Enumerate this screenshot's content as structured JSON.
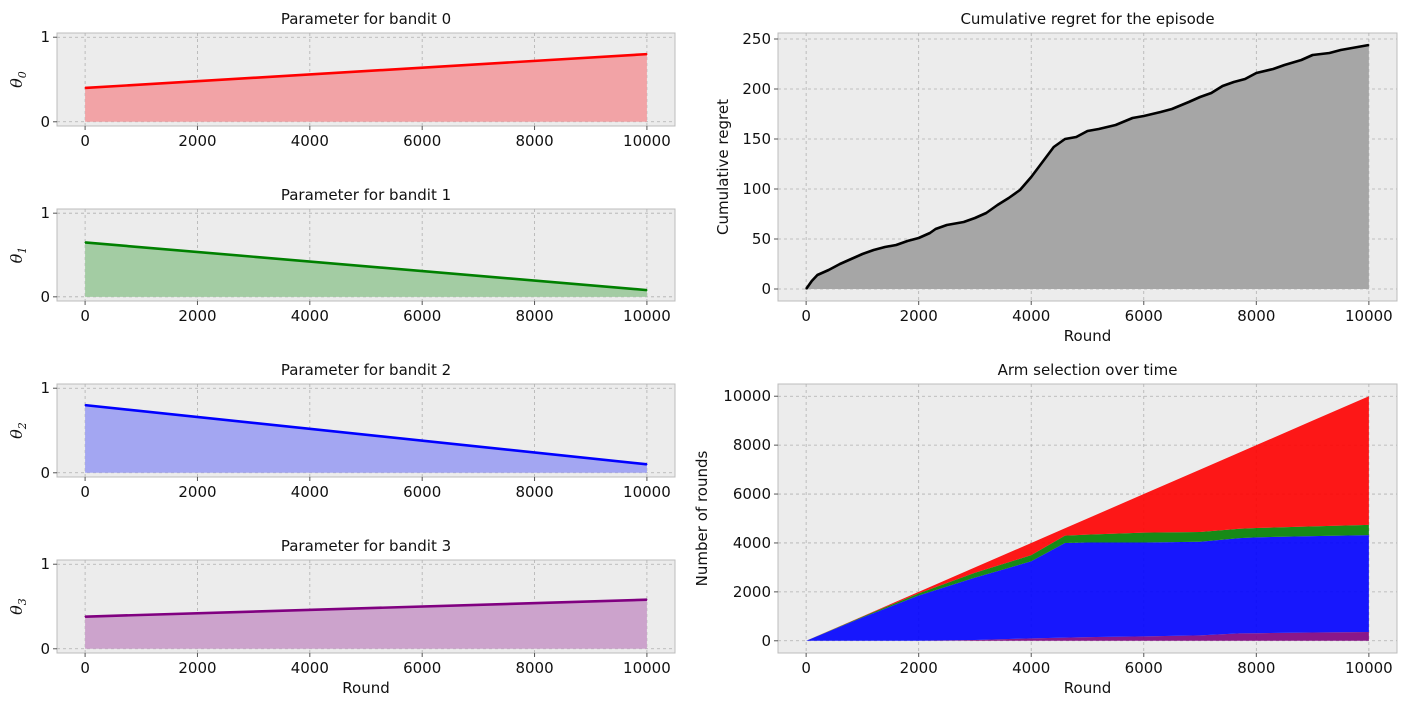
{
  "chart_data": [
    {
      "type": "area",
      "title": "Parameter for bandit 0",
      "ylabel": "θ",
      "ylabel_sub": "0",
      "xlabel": "",
      "color": "#ff0000",
      "fill": "#f2a3a6",
      "x": [
        0,
        10000
      ],
      "values": [
        0.4,
        0.8
      ],
      "xlim": [
        -500,
        10500
      ],
      "ylim": [
        -0.05,
        1.05
      ],
      "xticks": [
        0,
        2000,
        4000,
        6000,
        8000,
        10000
      ],
      "yticks": [
        0,
        1
      ],
      "grid": true
    },
    {
      "type": "area",
      "title": "Parameter for bandit 1",
      "ylabel": "θ",
      "ylabel_sub": "1",
      "xlabel": "",
      "color": "#008000",
      "fill": "#a3cca3",
      "x": [
        0,
        10000
      ],
      "values": [
        0.65,
        0.08
      ],
      "xlim": [
        -500,
        10500
      ],
      "ylim": [
        -0.05,
        1.05
      ],
      "xticks": [
        0,
        2000,
        4000,
        6000,
        8000,
        10000
      ],
      "yticks": [
        0,
        1
      ],
      "grid": true
    },
    {
      "type": "area",
      "title": "Parameter for bandit 2",
      "ylabel": "θ",
      "ylabel_sub": "2",
      "xlabel": "",
      "color": "#0000ff",
      "fill": "#a3a6f2",
      "x": [
        0,
        10000
      ],
      "values": [
        0.8,
        0.1
      ],
      "xlim": [
        -500,
        10500
      ],
      "ylim": [
        -0.05,
        1.05
      ],
      "xticks": [
        0,
        2000,
        4000,
        6000,
        8000,
        10000
      ],
      "yticks": [
        0,
        1
      ],
      "grid": true
    },
    {
      "type": "area",
      "title": "Parameter for bandit 3",
      "ylabel": "θ",
      "ylabel_sub": "3",
      "xlabel": "Round",
      "color": "#800080",
      "fill": "#cca3cc",
      "x": [
        0,
        10000
      ],
      "values": [
        0.38,
        0.58
      ],
      "xlim": [
        -500,
        10500
      ],
      "ylim": [
        -0.05,
        1.05
      ],
      "xticks": [
        0,
        2000,
        4000,
        6000,
        8000,
        10000
      ],
      "yticks": [
        0,
        1
      ],
      "grid": true
    },
    {
      "type": "area",
      "title": "Cumulative regret for the episode",
      "ylabel": "Cumulative regret",
      "xlabel": "Round",
      "color": "#000000",
      "fill": "#a6a6a6",
      "x": [
        0,
        100,
        200,
        400,
        600,
        800,
        1000,
        1200,
        1400,
        1600,
        1800,
        2000,
        2200,
        2300,
        2500,
        2800,
        3000,
        3200,
        3400,
        3600,
        3800,
        4000,
        4200,
        4400,
        4600,
        4800,
        5000,
        5200,
        5500,
        5800,
        6000,
        6300,
        6500,
        6800,
        7000,
        7200,
        7400,
        7600,
        7800,
        8000,
        8300,
        8500,
        8800,
        9000,
        9300,
        9500,
        9800,
        10000
      ],
      "values": [
        0,
        8,
        14,
        19,
        25,
        30,
        35,
        39,
        42,
        44,
        48,
        51,
        56,
        60,
        64,
        67,
        71,
        76,
        84,
        91,
        99,
        112,
        127,
        142,
        150,
        152,
        158,
        160,
        164,
        171,
        173,
        177,
        180,
        187,
        192,
        196,
        203,
        207,
        210,
        216,
        220,
        224,
        229,
        234,
        236,
        239,
        242,
        244
      ],
      "xlim": [
        -500,
        10500
      ],
      "ylim": [
        -12,
        256
      ],
      "xticks": [
        0,
        2000,
        4000,
        6000,
        8000,
        10000
      ],
      "yticks": [
        0,
        50,
        100,
        150,
        200,
        250
      ],
      "grid": true
    },
    {
      "type": "area",
      "stacked": true,
      "title": "Arm selection over time",
      "ylabel": "Number of rounds",
      "xlabel": "Round",
      "x": [
        0,
        1000,
        2000,
        3000,
        4000,
        4600,
        5000,
        6000,
        7000,
        7700,
        8000,
        9000,
        10000
      ],
      "series": [
        {
          "color": "#800080",
          "values": [
            0,
            0,
            0,
            30,
            100,
            130,
            150,
            180,
            220,
            300,
            310,
            340,
            360
          ]
        },
        {
          "color": "#0000ff",
          "values": [
            0,
            950,
            1850,
            2550,
            3150,
            3870,
            3870,
            3840,
            3830,
            3900,
            3920,
            3940,
            3960
          ]
        },
        {
          "color": "#008000",
          "values": [
            0,
            30,
            90,
            200,
            250,
            300,
            320,
            400,
            400,
            380,
            380,
            400,
            420
          ]
        },
        {
          "color": "#ff0000",
          "values": [
            0,
            20,
            60,
            220,
            500,
            300,
            660,
            1580,
            2550,
            3120,
            3390,
            4320,
            5260
          ]
        }
      ],
      "xlim": [
        -500,
        10500
      ],
      "ylim": [
        -500,
        10500
      ],
      "xticks": [
        0,
        2000,
        4000,
        6000,
        8000,
        10000
      ],
      "yticks": [
        0,
        2000,
        4000,
        6000,
        8000,
        10000
      ],
      "grid": true
    }
  ]
}
